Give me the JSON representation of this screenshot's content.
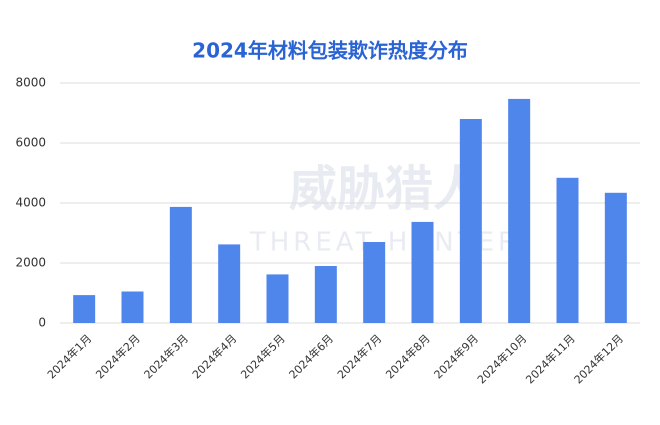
{
  "chart_data": {
    "type": "bar",
    "title": "2024年材料包装欺诈热度分布",
    "watermark": {
      "title": "威胁猎人",
      "subtitle": "THREAT HUNTER"
    },
    "categories": [
      "2024年1月",
      "2024年2月",
      "2024年3月",
      "2024年4月",
      "2024年5月",
      "2024年6月",
      "2024年7月",
      "2024年8月",
      "2024年9月",
      "2024年10月",
      "2024年11月",
      "2024年12月"
    ],
    "values": [
      930,
      1050,
      3870,
      2620,
      1620,
      1900,
      2700,
      3370,
      6800,
      7470,
      4840,
      4340
    ],
    "color": "#4f86ec",
    "ylim": [
      0,
      8000
    ],
    "yticks": [
      0,
      2000,
      4000,
      6000,
      8000
    ],
    "grid": true
  }
}
